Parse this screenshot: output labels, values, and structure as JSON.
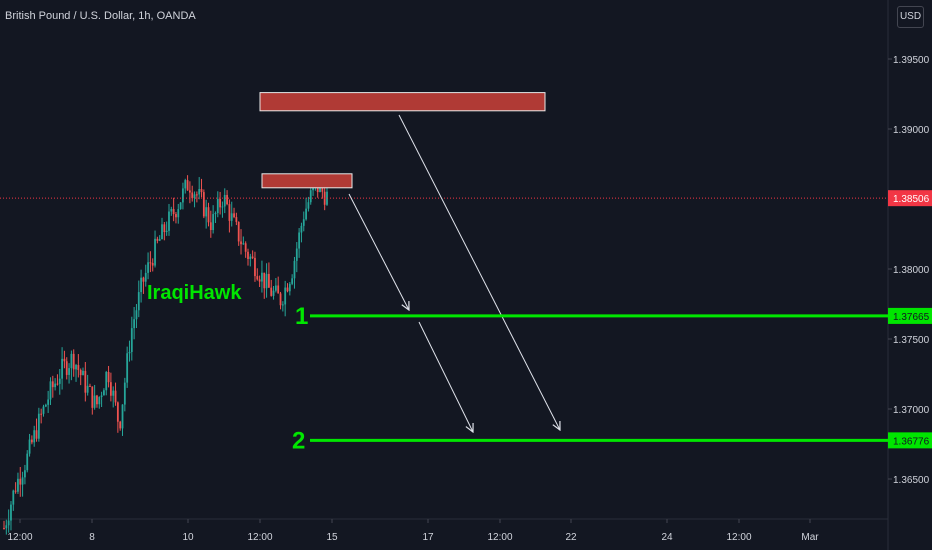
{
  "title": "British Pound / U.S. Dollar, 1h, OANDA",
  "currency_button": "USD",
  "watermark": "IraqiHawk",
  "colors": {
    "background": "#131722",
    "text": "#d1d4dc",
    "up": "#26a69a",
    "down": "#ef5350",
    "target": "#00e600",
    "zone": "#b03a35",
    "arrow": "#e0e3eb",
    "current_price": "#f23645"
  },
  "chart_data": {
    "type": "candlestick",
    "symbol": "GBPUSD",
    "timeframe": "1h",
    "y_axis": {
      "ticks": [
        "1.39500",
        "1.39000",
        "1.38000",
        "1.37500",
        "1.37000",
        "1.36500"
      ],
      "tick_values": [
        1.395,
        1.39,
        1.38,
        1.375,
        1.37,
        1.365
      ],
      "range": [
        1.3615,
        1.4015
      ]
    },
    "x_axis": {
      "ticks": [
        "12:00",
        "8",
        "10",
        "12:00",
        "15",
        "17",
        "12:00",
        "22",
        "24",
        "12:00",
        "Mar"
      ]
    },
    "current_price": {
      "value": 1.38506,
      "label": "1.38506"
    },
    "targets": [
      {
        "name": "1",
        "value": 1.37665,
        "label": "1.37665"
      },
      {
        "name": "2",
        "value": 1.36776,
        "label": "1.36776"
      }
    ],
    "resistance_zones": [
      {
        "top": 1.3926,
        "bottom": 1.3913
      },
      {
        "top": 1.3868,
        "bottom": 1.3858
      }
    ],
    "price_path": [
      1.3615,
      1.3645,
      1.3665,
      1.369,
      1.3712,
      1.3728,
      1.3737,
      1.3718,
      1.3702,
      1.3728,
      1.3688,
      1.3755,
      1.379,
      1.3812,
      1.383,
      1.3845,
      1.3862,
      1.385,
      1.3832,
      1.3852,
      1.383,
      1.3812,
      1.38,
      1.3785,
      1.3778,
      1.38,
      1.384,
      1.386,
      1.3852
    ]
  }
}
